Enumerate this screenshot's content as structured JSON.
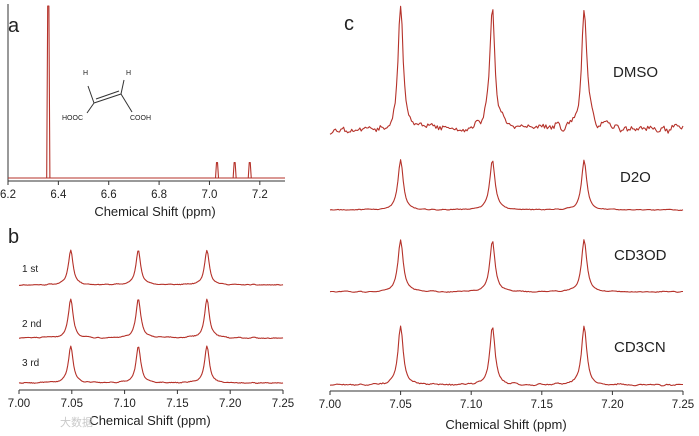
{
  "watermark": "大数据",
  "panels": {
    "a": {
      "letter": "a",
      "xlabel": "Chemical Shift (ppm)",
      "molecule": {
        "h_left": "H",
        "h_right": "H",
        "group_left": "HOOC",
        "group_right": "COOH"
      }
    },
    "b": {
      "letter": "b",
      "xlabel": "Chemical Shift (ppm)",
      "runs": [
        "1 st",
        "2 nd",
        "3 rd"
      ]
    },
    "c": {
      "letter": "c",
      "xlabel": "Chemical Shift (ppm)",
      "solvents": [
        "DMSO",
        "D2O",
        "CD3OD",
        "CD3CN"
      ]
    }
  },
  "chart_data": [
    {
      "id": "a",
      "type": "line",
      "title": "",
      "xlabel": "Chemical Shift (ppm)",
      "ylabel": "",
      "xlim": [
        6.2,
        7.3
      ],
      "x_ticks": [
        "6.2",
        "6.4",
        "6.6",
        "6.8",
        "7.0",
        "7.2"
      ],
      "x_tick_values": [
        6.2,
        6.4,
        6.6,
        6.8,
        7.0,
        7.2
      ],
      "series": [
        {
          "peaks": [
            {
              "x": 6.36,
              "height": 1.0
            },
            {
              "x": 7.03,
              "height": 0.09
            },
            {
              "x": 7.1,
              "height": 0.09
            },
            {
              "x": 7.16,
              "height": 0.09
            }
          ]
        }
      ],
      "grid": false,
      "legend": "none"
    },
    {
      "id": "b",
      "type": "line",
      "title": "",
      "xlabel": "Chemical Shift (ppm)",
      "ylabel": "",
      "xlim": [
        7.0,
        7.25
      ],
      "x_ticks": [
        "7.00",
        "7.05",
        "7.10",
        "7.15",
        "7.20",
        "7.25"
      ],
      "x_tick_values": [
        7.0,
        7.05,
        7.1,
        7.15,
        7.2,
        7.25
      ],
      "peak_positions": [
        7.049,
        7.113,
        7.178
      ],
      "series": [
        {
          "name": "1 st",
          "peak_heights": [
            1.0,
            1.0,
            1.0
          ]
        },
        {
          "name": "2 nd",
          "peak_heights": [
            1.0,
            1.0,
            1.0
          ]
        },
        {
          "name": "3 rd",
          "peak_heights": [
            1.0,
            1.0,
            1.0
          ]
        }
      ],
      "grid": false,
      "legend": "left"
    },
    {
      "id": "c",
      "type": "line",
      "title": "",
      "xlabel": "Chemical Shift (ppm)",
      "ylabel": "",
      "xlim": [
        7.0,
        7.25
      ],
      "x_ticks": [
        "7.00",
        "7.05",
        "7.10",
        "7.15",
        "7.20",
        "7.25"
      ],
      "x_tick_values": [
        7.0,
        7.05,
        7.1,
        7.15,
        7.2,
        7.25
      ],
      "peak_positions": [
        7.05,
        7.115,
        7.18
      ],
      "series": [
        {
          "name": "DMSO",
          "peak_heights": [
            1.0,
            1.0,
            1.0
          ],
          "noise": 0.1
        },
        {
          "name": "D2O",
          "peak_heights": [
            1.0,
            1.0,
            1.0
          ],
          "noise": 0.03
        },
        {
          "name": "CD3OD",
          "peak_heights": [
            1.0,
            1.0,
            1.0
          ],
          "noise": 0.03
        },
        {
          "name": "CD3CN",
          "peak_heights": [
            1.0,
            1.0,
            1.0
          ],
          "noise": 0.04
        }
      ],
      "grid": false,
      "legend": "right"
    }
  ]
}
